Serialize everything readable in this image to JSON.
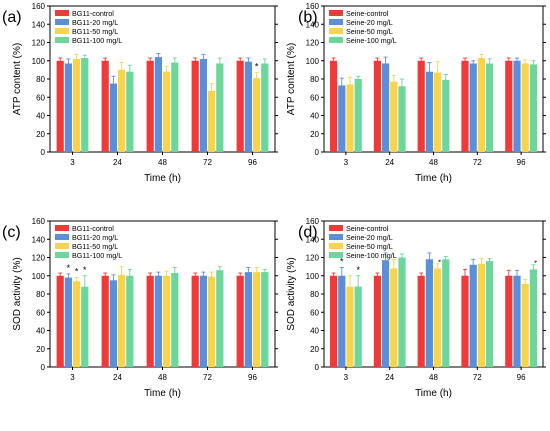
{
  "figure": {
    "layout": "2x2 grid"
  },
  "chart_data": [
    {
      "type": "bar",
      "panel_label": "(a)",
      "categories": [
        "3",
        "24",
        "48",
        "72",
        "96"
      ],
      "xlabel": "Time (h)",
      "ylabel": "ATP content (%)",
      "ylim": [
        0,
        160
      ],
      "yticks": [
        0,
        20,
        40,
        60,
        80,
        100,
        120,
        140,
        160
      ],
      "legend_position": "top-left",
      "series": [
        {
          "name": "BG11-control",
          "color": "#f03a3a",
          "values": [
            100,
            100,
            100,
            100,
            100
          ],
          "errors": [
            3,
            3,
            3,
            3,
            3
          ]
        },
        {
          "name": "BG11-20 mg/L",
          "color": "#5b8fd8",
          "values": [
            97,
            75,
            104,
            102,
            99
          ],
          "errors": [
            5,
            8,
            4,
            5,
            4
          ]
        },
        {
          "name": "BG11-50 mg/L",
          "color": "#f6d54a",
          "values": [
            102,
            90,
            88,
            67,
            81
          ],
          "errors": [
            5,
            8,
            6,
            8,
            6
          ]
        },
        {
          "name": "BG11-100 mg/L",
          "color": "#6dd69a",
          "values": [
            103,
            88,
            98,
            97,
            97
          ],
          "errors": [
            3,
            7,
            5,
            6,
            5
          ]
        }
      ],
      "significance": [
        {
          "category": "96",
          "series": "BG11-50 mg/L",
          "mark": "*"
        }
      ]
    },
    {
      "type": "bar",
      "panel_label": "(b)",
      "categories": [
        "3",
        "24",
        "48",
        "72",
        "96"
      ],
      "xlabel": "Time (h)",
      "ylabel": "ATP content (%)",
      "ylim": [
        0,
        160
      ],
      "yticks": [
        0,
        20,
        40,
        60,
        80,
        100,
        120,
        140,
        160
      ],
      "legend_position": "top-left",
      "series": [
        {
          "name": "Seine-control",
          "color": "#f03a3a",
          "values": [
            100,
            100,
            100,
            100,
            100
          ],
          "errors": [
            3,
            3,
            3,
            3,
            3
          ]
        },
        {
          "name": "Seine-20 mg/L",
          "color": "#5b8fd8",
          "values": [
            73,
            97,
            88,
            97,
            100
          ],
          "errors": [
            8,
            7,
            10,
            3,
            3
          ]
        },
        {
          "name": "Seine-50 mg/L",
          "color": "#f6d54a",
          "values": [
            74,
            77,
            87,
            103,
            97
          ],
          "errors": [
            8,
            7,
            12,
            4,
            4
          ]
        },
        {
          "name": "Seine-100 mg/L",
          "color": "#6dd69a",
          "values": [
            80,
            72,
            79,
            97,
            96
          ],
          "errors": [
            3,
            8,
            6,
            5,
            4
          ]
        }
      ],
      "significance": []
    },
    {
      "type": "bar",
      "panel_label": "(c)",
      "categories": [
        "3",
        "24",
        "48",
        "72",
        "96"
      ],
      "xlabel": "Time (h)",
      "ylabel": "SOD activity (%)",
      "ylim": [
        0,
        160
      ],
      "yticks": [
        0,
        20,
        40,
        60,
        80,
        100,
        120,
        140,
        160
      ],
      "legend_position": "top-left",
      "series": [
        {
          "name": "BG11-control",
          "color": "#f03a3a",
          "values": [
            100,
            100,
            100,
            100,
            100
          ],
          "errors": [
            3,
            3,
            3,
            3,
            3
          ]
        },
        {
          "name": "BG11-20 mg/L",
          "color": "#5b8fd8",
          "values": [
            98,
            95,
            100,
            100,
            104
          ],
          "errors": [
            4,
            6,
            4,
            4,
            5
          ]
        },
        {
          "name": "BG11-50 mg/L",
          "color": "#f6d54a",
          "values": [
            94,
            101,
            100,
            99,
            104
          ],
          "errors": [
            4,
            9,
            5,
            5,
            5
          ]
        },
        {
          "name": "BG11-100 mg/L",
          "color": "#6dd69a",
          "values": [
            88,
            100,
            103,
            106,
            104
          ],
          "errors": [
            12,
            7,
            6,
            4,
            3
          ]
        }
      ],
      "significance": [
        {
          "category": "3",
          "series": "BG11-20 mg/L",
          "mark": "*"
        },
        {
          "category": "3",
          "series": "BG11-50 mg/L",
          "mark": "*"
        },
        {
          "category": "3",
          "series": "BG11-100 mg/L",
          "mark": "*"
        }
      ]
    },
    {
      "type": "bar",
      "panel_label": "(d)",
      "categories": [
        "3",
        "24",
        "48",
        "72",
        "96"
      ],
      "xlabel": "Time (h)",
      "ylabel": "SOD activity (%)",
      "ylim": [
        0,
        160
      ],
      "yticks": [
        0,
        20,
        40,
        60,
        80,
        100,
        120,
        140,
        160
      ],
      "legend_position": "top-left",
      "series": [
        {
          "name": "Seine-control",
          "color": "#f03a3a",
          "values": [
            100,
            100,
            100,
            100,
            100
          ],
          "errors": [
            3,
            3,
            3,
            7,
            6
          ]
        },
        {
          "name": "Seine-20 mg/L",
          "color": "#5b8fd8",
          "values": [
            100,
            117,
            118,
            112,
            100
          ],
          "errors": [
            9,
            8,
            7,
            6,
            6
          ]
        },
        {
          "name": "Seine-50 mg/L",
          "color": "#f6d54a",
          "values": [
            88,
            108,
            108,
            113,
            91
          ],
          "errors": [
            12,
            10,
            5,
            6,
            5
          ]
        },
        {
          "name": "Seine-100 mg/L",
          "color": "#6dd69a",
          "values": [
            88,
            120,
            118,
            116,
            107
          ],
          "errors": [
            12,
            4,
            3,
            3,
            5
          ]
        }
      ],
      "significance": [
        {
          "category": "3",
          "series": "Seine-20 mg/L",
          "mark": "*"
        },
        {
          "category": "3",
          "series": "Seine-100 mg/L",
          "mark": "*"
        },
        {
          "category": "48",
          "series": "Seine-50 mg/L",
          "mark": "**"
        },
        {
          "category": "96",
          "series": "Seine-100 mg/L",
          "mark": "**"
        }
      ]
    }
  ]
}
